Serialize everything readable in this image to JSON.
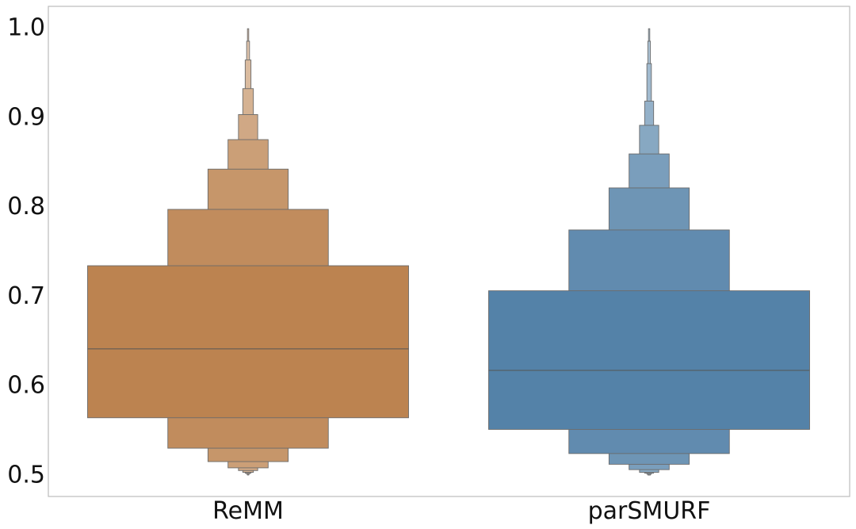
{
  "chart_data": {
    "type": "boxen",
    "title": "",
    "xlabel": "",
    "ylabel": "",
    "ylim": [
      0.476,
      1.024
    ],
    "yticks": [
      1.0,
      0.9,
      0.8,
      0.7,
      0.6,
      0.5
    ],
    "ytick_labels": [
      "1.0",
      "0.9",
      "0.8",
      "0.7",
      "0.6",
      "0.5"
    ],
    "grid": false,
    "legend": "none",
    "categories": [
      "ReMM",
      "parSMURF"
    ],
    "series": [
      {
        "category": "ReMM",
        "color": "#BC8350",
        "median": 0.641,
        "levels": [
          {
            "low": 0.564,
            "high": 0.734,
            "width": 1.0
          },
          {
            "low": 0.53,
            "high": 0.797,
            "width": 0.5
          },
          {
            "low": 0.515,
            "high": 0.842,
            "width": 0.25
          },
          {
            "low": 0.508,
            "high": 0.875,
            "width": 0.125
          },
          {
            "low": 0.505,
            "high": 0.903,
            "width": 0.06
          },
          {
            "low": 0.503,
            "high": 0.932,
            "width": 0.033
          },
          {
            "low": 0.502,
            "high": 0.964,
            "width": 0.018
          },
          {
            "low": 0.501,
            "high": 0.985,
            "width": 0.009
          },
          {
            "low": 0.5,
            "high": 0.999,
            "width": 0.004
          }
        ]
      },
      {
        "category": "parSMURF",
        "color": "#5482A8",
        "median": 0.617,
        "levels": [
          {
            "low": 0.551,
            "high": 0.706,
            "width": 1.0
          },
          {
            "low": 0.524,
            "high": 0.774,
            "width": 0.5
          },
          {
            "low": 0.512,
            "high": 0.821,
            "width": 0.25
          },
          {
            "low": 0.506,
            "high": 0.859,
            "width": 0.125
          },
          {
            "low": 0.503,
            "high": 0.891,
            "width": 0.06
          },
          {
            "low": 0.502,
            "high": 0.918,
            "width": 0.028
          },
          {
            "low": 0.501,
            "high": 0.96,
            "width": 0.014
          },
          {
            "low": 0.5,
            "high": 0.985,
            "width": 0.008
          },
          {
            "low": 0.5,
            "high": 0.999,
            "width": 0.004
          }
        ]
      }
    ]
  }
}
